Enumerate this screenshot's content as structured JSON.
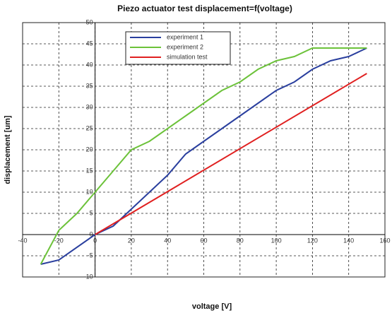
{
  "chart_data": {
    "type": "line",
    "title": "Piezo actuator test    displacement=f(voltage)",
    "x_label": "voltage [V]",
    "y_label": "displacement [um]",
    "xlim": [
      -40,
      160
    ],
    "xticks": [
      -40,
      -20,
      0,
      20,
      40,
      60,
      80,
      100,
      120,
      140,
      160
    ],
    "ylim": [
      -10,
      50
    ],
    "yticks": [
      -10,
      -5,
      0,
      5,
      10,
      15,
      20,
      25,
      30,
      35,
      40,
      45,
      50
    ],
    "grid": true,
    "legend": "upper left",
    "series": [
      {
        "name": "experiment 1",
        "color": "#2a3f9e",
        "x": [
          -30,
          -20,
          0,
          10,
          20,
          30,
          40,
          50,
          60,
          70,
          80,
          90,
          100,
          110,
          120,
          130,
          140,
          150
        ],
        "values": [
          -7,
          -6,
          0,
          2,
          6,
          10,
          14,
          19,
          22,
          25,
          28,
          31,
          34,
          36,
          39,
          41,
          42,
          44
        ]
      },
      {
        "name": "experiment 2",
        "color": "#6cc23a",
        "x": [
          -30,
          -20,
          -10,
          0,
          10,
          20,
          30,
          40,
          50,
          60,
          70,
          80,
          90,
          100,
          110,
          120,
          130,
          140,
          150
        ],
        "values": [
          -7,
          1,
          5,
          10,
          15,
          20,
          22,
          25,
          28,
          31,
          34,
          36,
          39,
          41,
          42,
          44,
          44,
          44,
          44
        ]
      },
      {
        "name": "simulation test",
        "color": "#e02020",
        "x": [
          0,
          150
        ],
        "values": [
          0,
          38
        ]
      }
    ]
  }
}
